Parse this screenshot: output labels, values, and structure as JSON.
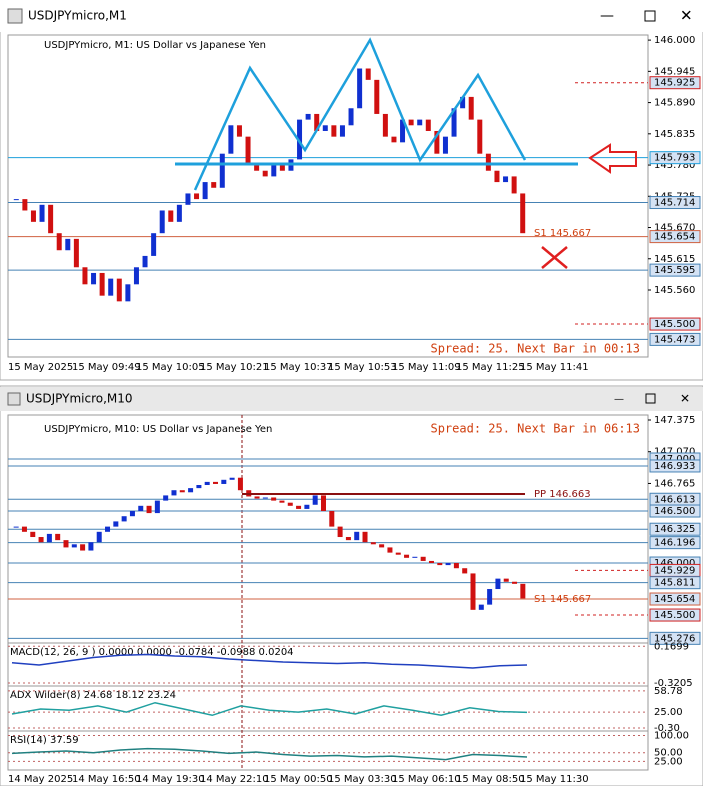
{
  "windows": [
    {
      "title": "USDJPYmicro,M1",
      "symbol_label": "USDJPYmicro, M1: US Dollar vs Japanese Yen",
      "ylim": [
        145.442,
        146.009
      ],
      "price_ticks": [
        {
          "value": 146.0,
          "label": "146.000"
        },
        {
          "value": 145.945,
          "label": "145.945"
        },
        {
          "value": 145.89,
          "label": "145.890"
        },
        {
          "value": 145.835,
          "label": "145.835"
        },
        {
          "value": 145.78,
          "label": "145.780"
        },
        {
          "value": 145.725,
          "label": "145.725"
        },
        {
          "value": 145.67,
          "label": "145.670"
        },
        {
          "value": 145.615,
          "label": "145.615"
        },
        {
          "value": 145.56,
          "label": "145.560"
        }
      ],
      "price_levels": [
        {
          "value": 145.925,
          "label": "145.925",
          "color": "#d02020",
          "dashed": true
        },
        {
          "value": 145.793,
          "label": "145.793",
          "color": "#1ea0dc",
          "dashed": false
        },
        {
          "value": 145.714,
          "label": "145.714",
          "color": "#4682b4",
          "dashed": false
        },
        {
          "value": 145.654,
          "label": "145.654",
          "color": "#d06040",
          "dashed": false
        },
        {
          "value": 145.595,
          "label": "145.595",
          "color": "#4682b4",
          "dashed": false
        },
        {
          "value": 145.5,
          "label": "145.500",
          "color": "#d02020",
          "dashed": true
        },
        {
          "value": 145.473,
          "label": "145.473",
          "color": "#4682b4",
          "dashed": false
        }
      ],
      "s1_label": "S1 145.667",
      "spread_text": "Spread: 25. Next Bar in 00:13",
      "time_labels": [
        "15 May 2025",
        "15 May 09:49",
        "15 May 10:05",
        "15 May 10:21",
        "15 May 10:37",
        "15 May 10:53",
        "15 May 11:09",
        "15 May 11:25",
        "15 May 11:41"
      ],
      "closes": [
        145.72,
        145.7,
        145.68,
        145.71,
        145.66,
        145.63,
        145.65,
        145.6,
        145.57,
        145.59,
        145.55,
        145.58,
        145.54,
        145.57,
        145.6,
        145.62,
        145.66,
        145.7,
        145.68,
        145.71,
        145.73,
        145.72,
        145.75,
        145.74,
        145.8,
        145.85,
        145.83,
        145.78,
        145.77,
        145.76,
        145.78,
        145.77,
        145.79,
        145.86,
        145.87,
        145.84,
        145.85,
        145.83,
        145.85,
        145.88,
        145.95,
        145.93,
        145.87,
        145.83,
        145.82,
        145.86,
        145.85,
        145.86,
        145.84,
        145.8,
        145.83,
        145.88,
        145.9,
        145.86,
        145.8,
        145.77,
        145.75,
        145.76,
        145.73,
        145.66
      ]
    },
    {
      "title": "USDJPYmicro,M10",
      "symbol_label": "USDJPYmicro, M10: US Dollar vs Japanese Yen",
      "ylim": [
        145.26,
        147.423
      ],
      "price_ticks": [
        {
          "value": 147.375,
          "label": "147.375"
        },
        {
          "value": 147.07,
          "label": "147.070"
        },
        {
          "value": 146.765,
          "label": "146.765"
        }
      ],
      "price_levels": [
        {
          "value": 147.0,
          "label": "147.000",
          "color": "#4682b4",
          "dashed": false
        },
        {
          "value": 146.933,
          "label": "146.933",
          "color": "#4682b4",
          "dashed": false
        },
        {
          "value": 146.613,
          "label": "146.613",
          "color": "#4682b4",
          "dashed": false
        },
        {
          "value": 146.5,
          "label": "146.500",
          "color": "#4682b4",
          "dashed": false
        },
        {
          "value": 146.325,
          "label": "146.325",
          "color": "#4682b4",
          "dashed": false
        },
        {
          "value": 146.196,
          "label": "146.196",
          "color": "#4682b4",
          "dashed": false
        },
        {
          "value": 146.0,
          "label": "146.000",
          "color": "#4682b4",
          "dashed": false
        },
        {
          "value": 145.929,
          "label": "145.929",
          "color": "#d02020",
          "dashed": true
        },
        {
          "value": 145.811,
          "label": "145.811",
          "color": "#4682b4",
          "dashed": false
        },
        {
          "value": 145.654,
          "label": "145.654",
          "color": "#d06040",
          "dashed": false
        },
        {
          "value": 145.5,
          "label": "145.500",
          "color": "#d02020",
          "dashed": true
        },
        {
          "value": 145.276,
          "label": "145.276",
          "color": "#4682b4",
          "dashed": false
        }
      ],
      "pp_label": "PP 146.663",
      "pp_value": 146.663,
      "s1_label": "S1 145.667",
      "spread_text": "Spread: 25. Next Bar in 06:13",
      "time_labels": [
        "14 May 2025",
        "14 May 16:50",
        "14 May 19:30",
        "14 May 22:10",
        "15 May 00:50",
        "15 May 03:30",
        "15 May 06:10",
        "15 May 08:50",
        "15 May 11:30"
      ],
      "closes": [
        146.35,
        146.3,
        146.25,
        146.2,
        146.28,
        146.22,
        146.15,
        146.18,
        146.12,
        146.2,
        146.3,
        146.35,
        146.4,
        146.45,
        146.5,
        146.55,
        146.48,
        146.6,
        146.65,
        146.7,
        146.68,
        146.72,
        146.75,
        146.78,
        146.76,
        146.8,
        146.82,
        146.7,
        146.64,
        146.62,
        146.63,
        146.6,
        146.58,
        146.55,
        146.52,
        146.56,
        146.65,
        146.5,
        146.35,
        146.25,
        146.22,
        146.3,
        146.2,
        146.18,
        146.15,
        146.1,
        146.08,
        146.05,
        146.06,
        146.02,
        146.0,
        145.98,
        146.0,
        145.95,
        145.9,
        145.55,
        145.6,
        145.75,
        145.85,
        145.82,
        145.8,
        145.66
      ],
      "indicators": [
        {
          "label": "MACD(12, 26, 9 ) 0.0000 0.0000 -0.0784 -0.0988 0.0204",
          "ylim": [
            -0.36,
            0.2
          ],
          "ticks": [
            {
              "value": 0.1699,
              "label": "0.1699"
            },
            {
              "value": -0.3205,
              "label": "-0.3205"
            }
          ],
          "color": "#2040c0",
          "values": [
            -0.05,
            -0.08,
            -0.03,
            0.02,
            0.05,
            0.06,
            0.04,
            0.03,
            0.0,
            -0.02,
            -0.04,
            -0.05,
            -0.06,
            -0.05,
            -0.07,
            -0.08,
            -0.1,
            -0.12,
            -0.09,
            -0.08
          ]
        },
        {
          "label": "ADX Wilder(8) 24.68 18.12 23.24",
          "ylim": [
            -5,
            65
          ],
          "ticks": [
            {
              "value": 58.78,
              "label": "58.78"
            },
            {
              "value": 25,
              "label": "25.00"
            },
            {
              "value": -0.3,
              "label": "-0.30"
            }
          ],
          "color": "#20a0a0",
          "values": [
            22,
            30,
            28,
            35,
            25,
            40,
            30,
            20,
            35,
            28,
            25,
            30,
            22,
            35,
            28,
            20,
            32,
            26,
            24.68
          ]
        },
        {
          "label": "RSI(14) 37.59",
          "ylim": [
            0,
            110
          ],
          "ticks": [
            {
              "value": 100,
              "label": "100.00"
            },
            {
              "value": 50,
              "label": "50.00"
            },
            {
              "value": 25,
              "label": "25.00"
            }
          ],
          "color": "#208080",
          "values": [
            48,
            52,
            55,
            50,
            58,
            62,
            60,
            55,
            48,
            52,
            45,
            40,
            42,
            38,
            40,
            35,
            30,
            45,
            42,
            37.59
          ]
        }
      ]
    }
  ]
}
